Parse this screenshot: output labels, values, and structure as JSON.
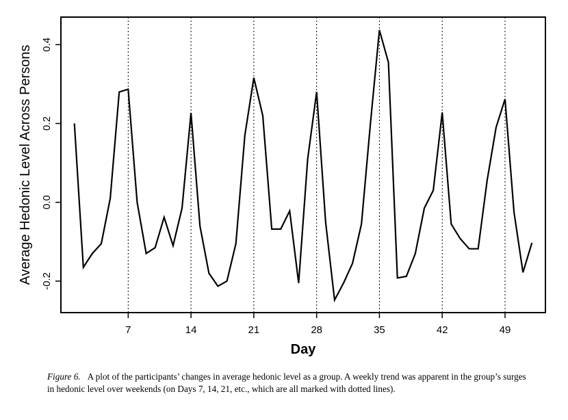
{
  "chart_data": {
    "type": "line",
    "xlabel": "Day",
    "ylabel": "Average Hedonic Level Across Persons",
    "xlim": [
      -0.5,
      53.5
    ],
    "ylim": [
      -0.28,
      0.47
    ],
    "xticks": [
      7,
      14,
      21,
      28,
      35,
      42,
      49
    ],
    "xtick_labels": [
      "7",
      "14",
      "21",
      "28",
      "35",
      "42",
      "49"
    ],
    "yticks": [
      -0.2,
      0.0,
      0.2,
      0.4
    ],
    "ytick_labels": [
      "-0.2",
      "0.0",
      "0.2",
      "0.4"
    ],
    "reference_lines_x": [
      7,
      14,
      21,
      28,
      35,
      42,
      49
    ],
    "reference_line_style": "dotted",
    "grid": false,
    "series": [
      {
        "x": [
          1,
          2,
          3,
          4,
          5,
          6,
          7,
          8,
          9,
          10,
          11,
          12,
          13,
          14,
          15,
          16,
          17,
          18,
          19,
          20,
          21,
          22,
          23,
          24,
          25,
          26,
          27,
          28,
          29,
          30,
          31,
          32,
          33,
          34,
          35,
          36,
          37,
          38,
          39,
          40,
          41,
          42,
          43,
          44,
          45,
          46,
          47,
          48,
          49,
          50,
          51,
          52
        ],
        "values": [
          0.2,
          -0.165,
          -0.13,
          -0.105,
          0.01,
          0.28,
          0.287,
          0.0,
          -0.13,
          -0.115,
          -0.038,
          -0.11,
          -0.015,
          0.227,
          -0.06,
          -0.18,
          -0.213,
          -0.2,
          -0.105,
          0.17,
          0.316,
          0.22,
          -0.068,
          -0.068,
          -0.022,
          -0.205,
          0.11,
          0.28,
          -0.05,
          -0.248,
          -0.205,
          -0.155,
          -0.055,
          0.2,
          0.437,
          0.355,
          -0.192,
          -0.188,
          -0.13,
          -0.015,
          0.03,
          0.228,
          -0.055,
          -0.092,
          -0.118,
          -0.118,
          0.055,
          0.19,
          0.262,
          -0.025,
          -0.178,
          -0.103
        ]
      }
    ]
  },
  "caption": {
    "figure_label": "Figure 6.",
    "text": "A plot of the participants’ changes in average hedonic level as a group. A weekly trend was apparent in the group’s surges in hedonic level over weekends (on Days 7, 14, 21, etc., which are all marked with dotted lines)."
  }
}
